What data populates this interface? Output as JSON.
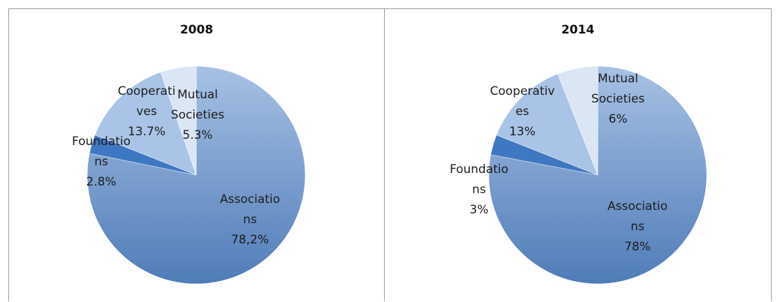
{
  "chart_data": [
    {
      "type": "pie",
      "title": "2008",
      "slices": [
        {
          "label_lines": [
            "Associatio",
            "ns",
            "78,2%"
          ],
          "value": 78.2,
          "color": "#5f8cc4"
        },
        {
          "label_lines": [
            "Foundatio",
            "ns",
            "2.8%"
          ],
          "value": 2.8,
          "color": "#3f78c2"
        },
        {
          "label_lines": [
            "Cooperati",
            "ves",
            "13.7%"
          ],
          "value": 13.7,
          "color": "#a9c4e6"
        },
        {
          "label_lines": [
            "Mutual",
            "Societies",
            "5.3%"
          ],
          "value": 5.3,
          "color": "#dbe6f4"
        }
      ]
    },
    {
      "type": "pie",
      "title": "2014",
      "slices": [
        {
          "label_lines": [
            "Associatio",
            "ns",
            "78%"
          ],
          "value": 78,
          "color": "#5f8cc4"
        },
        {
          "label_lines": [
            "Foundatio",
            "ns",
            "3%"
          ],
          "value": 3,
          "color": "#3f78c2"
        },
        {
          "label_lines": [
            "Cooperativ",
            "es",
            "13%"
          ],
          "value": 13,
          "color": "#a9c4e6"
        },
        {
          "label_lines": [
            "Mutual",
            "Societies",
            "6%"
          ],
          "value": 6,
          "color": "#dbe6f4"
        }
      ]
    }
  ]
}
